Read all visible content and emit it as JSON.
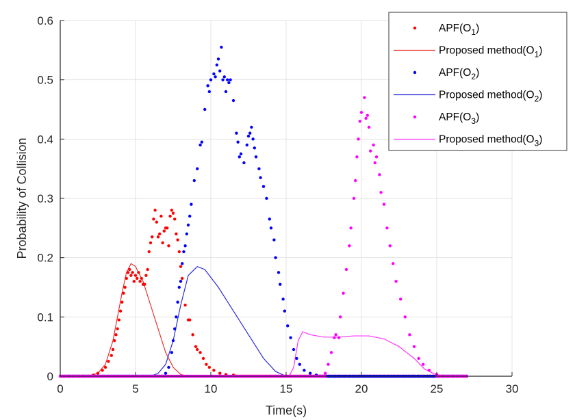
{
  "chart_data": {
    "type": "scatter",
    "xlabel": "Time(s)",
    "ylabel": "Probability of Collision",
    "xlim": [
      0,
      30
    ],
    "ylim": [
      0,
      0.6
    ],
    "xticks": [
      "0",
      "5",
      "10",
      "15",
      "20",
      "25",
      "30"
    ],
    "yticks": [
      "0",
      "0.1",
      "0.2",
      "0.3",
      "0.4",
      "0.5",
      "0.6"
    ],
    "grid": true,
    "legend_position": "top-right",
    "zero_points_x_range": [
      0,
      27
    ],
    "series": [
      {
        "name": "APF(O1)",
        "kind": "scatter",
        "color": "#ff0000",
        "legend": {
          "prefix": "APF(O",
          "sub": "1",
          "suffix": ")"
        },
        "points": [
          [
            2.2,
            0.002
          ],
          [
            2.5,
            0.005
          ],
          [
            2.8,
            0.01
          ],
          [
            3.0,
            0.015
          ],
          [
            3.2,
            0.025
          ],
          [
            3.4,
            0.035
          ],
          [
            3.5,
            0.045
          ],
          [
            3.6,
            0.06
          ],
          [
            3.7,
            0.07
          ],
          [
            3.8,
            0.08
          ],
          [
            3.9,
            0.095
          ],
          [
            4.0,
            0.11
          ],
          [
            4.1,
            0.125
          ],
          [
            4.2,
            0.14
          ],
          [
            4.3,
            0.15
          ],
          [
            4.4,
            0.165
          ],
          [
            4.5,
            0.175
          ],
          [
            4.6,
            0.18
          ],
          [
            4.7,
            0.17
          ],
          [
            4.8,
            0.175
          ],
          [
            4.9,
            0.16
          ],
          [
            5.0,
            0.17
          ],
          [
            5.1,
            0.165
          ],
          [
            5.2,
            0.175
          ],
          [
            5.3,
            0.16
          ],
          [
            5.4,
            0.165
          ],
          [
            5.5,
            0.155
          ],
          [
            5.6,
            0.155
          ],
          [
            5.7,
            0.17
          ],
          [
            5.8,
            0.18
          ],
          [
            5.9,
            0.21
          ],
          [
            6.0,
            0.225
          ],
          [
            6.1,
            0.235
          ],
          [
            6.2,
            0.265
          ],
          [
            6.3,
            0.28
          ],
          [
            6.4,
            0.26
          ],
          [
            6.5,
            0.235
          ],
          [
            6.6,
            0.24
          ],
          [
            6.7,
            0.27
          ],
          [
            6.8,
            0.225
          ],
          [
            6.9,
            0.245
          ],
          [
            7.0,
            0.25
          ],
          [
            7.1,
            0.25
          ],
          [
            7.2,
            0.22
          ],
          [
            7.3,
            0.27
          ],
          [
            7.4,
            0.28
          ],
          [
            7.5,
            0.275
          ],
          [
            7.6,
            0.265
          ],
          [
            7.7,
            0.24
          ],
          [
            7.8,
            0.23
          ],
          [
            7.9,
            0.21
          ],
          [
            8.0,
            0.185
          ],
          [
            8.1,
            0.165
          ],
          [
            8.3,
            0.12
          ],
          [
            8.5,
            0.095
          ],
          [
            8.6,
            0.095
          ],
          [
            8.8,
            0.07
          ],
          [
            9.0,
            0.05
          ],
          [
            9.1,
            0.045
          ],
          [
            9.3,
            0.04
          ],
          [
            9.5,
            0.03
          ],
          [
            9.7,
            0.02
          ],
          [
            9.9,
            0.015
          ],
          [
            10.2,
            0.01
          ],
          [
            10.6,
            0.005
          ],
          [
            11.0,
            0.003
          ],
          [
            11.5,
            0.002
          ]
        ]
      },
      {
        "name": "Proposed method(O1)",
        "kind": "line",
        "color": "#e8312f",
        "legend": {
          "prefix": "Proposed method(O",
          "sub": "1",
          "suffix": ")"
        },
        "points": [
          [
            0,
            0
          ],
          [
            2,
            0.001
          ],
          [
            2.5,
            0.005
          ],
          [
            3,
            0.02
          ],
          [
            3.5,
            0.06
          ],
          [
            3.8,
            0.1
          ],
          [
            4.1,
            0.14
          ],
          [
            4.4,
            0.175
          ],
          [
            4.7,
            0.19
          ],
          [
            5.0,
            0.185
          ],
          [
            5.5,
            0.16
          ],
          [
            6.0,
            0.12
          ],
          [
            6.5,
            0.08
          ],
          [
            7.0,
            0.04
          ],
          [
            7.5,
            0.015
          ],
          [
            8.0,
            0.003
          ],
          [
            8.5,
            0
          ],
          [
            27,
            0
          ]
        ]
      },
      {
        "name": "APF(O2)",
        "kind": "scatter",
        "color": "#0000ff",
        "legend": {
          "prefix": "APF(O",
          "sub": "2",
          "suffix": ")"
        },
        "points": [
          [
            7.0,
            0.005
          ],
          [
            7.2,
            0.015
          ],
          [
            7.4,
            0.04
          ],
          [
            7.5,
            0.06
          ],
          [
            7.6,
            0.08
          ],
          [
            7.7,
            0.1
          ],
          [
            7.8,
            0.125
          ],
          [
            7.9,
            0.15
          ],
          [
            8.0,
            0.16
          ],
          [
            8.1,
            0.19
          ],
          [
            8.2,
            0.21
          ],
          [
            8.3,
            0.22
          ],
          [
            8.4,
            0.24
          ],
          [
            8.5,
            0.255
          ],
          [
            8.6,
            0.27
          ],
          [
            8.7,
            0.29
          ],
          [
            8.9,
            0.33
          ],
          [
            9.1,
            0.35
          ],
          [
            9.3,
            0.39
          ],
          [
            9.4,
            0.395
          ],
          [
            9.6,
            0.45
          ],
          [
            9.8,
            0.49
          ],
          [
            9.9,
            0.48
          ],
          [
            10.0,
            0.5
          ],
          [
            10.2,
            0.51
          ],
          [
            10.3,
            0.505
          ],
          [
            10.4,
            0.525
          ],
          [
            10.5,
            0.535
          ],
          [
            10.6,
            0.515
          ],
          [
            10.7,
            0.555
          ],
          [
            10.8,
            0.5
          ],
          [
            10.9,
            0.505
          ],
          [
            11.0,
            0.48
          ],
          [
            11.1,
            0.5
          ],
          [
            11.2,
            0.495
          ],
          [
            11.3,
            0.5
          ],
          [
            11.5,
            0.465
          ],
          [
            11.7,
            0.41
          ],
          [
            11.8,
            0.395
          ],
          [
            11.9,
            0.37
          ],
          [
            12.0,
            0.375
          ],
          [
            12.2,
            0.36
          ],
          [
            12.4,
            0.39
          ],
          [
            12.5,
            0.405
          ],
          [
            12.6,
            0.41
          ],
          [
            12.7,
            0.42
          ],
          [
            12.8,
            0.4
          ],
          [
            12.9,
            0.385
          ],
          [
            13.0,
            0.37
          ],
          [
            13.2,
            0.35
          ],
          [
            13.3,
            0.335
          ],
          [
            13.5,
            0.32
          ],
          [
            13.7,
            0.3
          ],
          [
            13.9,
            0.265
          ],
          [
            14.0,
            0.25
          ],
          [
            14.2,
            0.23
          ],
          [
            14.3,
            0.2
          ],
          [
            14.5,
            0.175
          ],
          [
            14.6,
            0.155
          ],
          [
            14.8,
            0.13
          ],
          [
            14.9,
            0.11
          ],
          [
            15.1,
            0.085
          ],
          [
            15.3,
            0.065
          ],
          [
            15.5,
            0.045
          ],
          [
            15.7,
            0.03
          ],
          [
            15.9,
            0.02
          ],
          [
            16.2,
            0.01
          ],
          [
            16.6,
            0.005
          ],
          [
            17.0,
            0.002
          ]
        ]
      },
      {
        "name": "Proposed method(O2)",
        "kind": "line",
        "color": "#2b2bd9",
        "legend": {
          "prefix": "Proposed method(O",
          "sub": "2",
          "suffix": ")"
        },
        "points": [
          [
            0,
            0
          ],
          [
            6,
            0
          ],
          [
            6.5,
            0.005
          ],
          [
            7,
            0.02
          ],
          [
            7.5,
            0.06
          ],
          [
            8,
            0.12
          ],
          [
            8.5,
            0.17
          ],
          [
            9.1,
            0.185
          ],
          [
            9.6,
            0.18
          ],
          [
            10.5,
            0.15
          ],
          [
            11.5,
            0.11
          ],
          [
            12.5,
            0.07
          ],
          [
            13.5,
            0.03
          ],
          [
            14.3,
            0.008
          ],
          [
            15,
            0
          ],
          [
            27,
            0
          ]
        ]
      },
      {
        "name": "APF(O3)",
        "kind": "scatter",
        "color": "#ff00ff",
        "legend": {
          "prefix": "APF(O",
          "sub": "3",
          "suffix": ")"
        },
        "points": [
          [
            17.6,
            0.005
          ],
          [
            17.8,
            0.02
          ],
          [
            18.0,
            0.04
          ],
          [
            18.2,
            0.065
          ],
          [
            18.3,
            0.07
          ],
          [
            18.5,
            0.065
          ],
          [
            18.6,
            0.1
          ],
          [
            18.8,
            0.14
          ],
          [
            19.0,
            0.18
          ],
          [
            19.2,
            0.22
          ],
          [
            19.3,
            0.25
          ],
          [
            19.5,
            0.3
          ],
          [
            19.6,
            0.33
          ],
          [
            19.7,
            0.37
          ],
          [
            19.8,
            0.4
          ],
          [
            19.9,
            0.43
          ],
          [
            20.0,
            0.445
          ],
          [
            20.2,
            0.47
          ],
          [
            20.3,
            0.435
          ],
          [
            20.4,
            0.44
          ],
          [
            20.5,
            0.42
          ],
          [
            20.6,
            0.38
          ],
          [
            20.8,
            0.39
          ],
          [
            20.9,
            0.36
          ],
          [
            21.0,
            0.37
          ],
          [
            21.2,
            0.34
          ],
          [
            21.3,
            0.31
          ],
          [
            21.5,
            0.29
          ],
          [
            21.7,
            0.25
          ],
          [
            21.9,
            0.22
          ],
          [
            22.1,
            0.19
          ],
          [
            22.3,
            0.16
          ],
          [
            22.6,
            0.13
          ],
          [
            22.9,
            0.1
          ],
          [
            23.2,
            0.07
          ],
          [
            23.5,
            0.05
          ],
          [
            23.8,
            0.03
          ],
          [
            24.1,
            0.02
          ],
          [
            24.5,
            0.01
          ],
          [
            25.0,
            0.003
          ]
        ]
      },
      {
        "name": "Proposed method(O3)",
        "kind": "line",
        "color": "#ff33ff",
        "legend": {
          "prefix": "Proposed method(O",
          "sub": "3",
          "suffix": ")"
        },
        "points": [
          [
            0,
            0
          ],
          [
            15.2,
            0
          ],
          [
            15.5,
            0.015
          ],
          [
            15.8,
            0.06
          ],
          [
            16.1,
            0.075
          ],
          [
            16.6,
            0.07
          ],
          [
            17.5,
            0.066
          ],
          [
            18.5,
            0.066
          ],
          [
            19.5,
            0.068
          ],
          [
            20.5,
            0.068
          ],
          [
            21.5,
            0.063
          ],
          [
            22.5,
            0.05
          ],
          [
            23.5,
            0.03
          ],
          [
            24.2,
            0.012
          ],
          [
            25,
            0.002
          ],
          [
            25.5,
            0
          ],
          [
            27,
            0
          ]
        ]
      }
    ]
  }
}
